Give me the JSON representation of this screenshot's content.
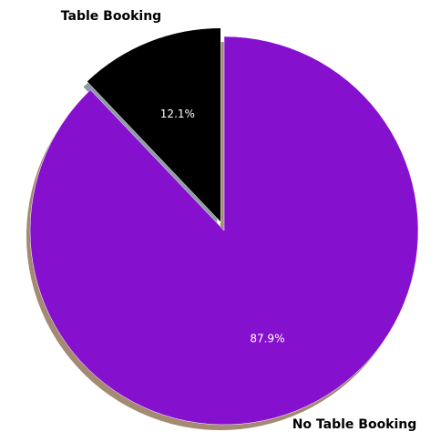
{
  "chart_data": {
    "type": "pie",
    "categories": [
      "Table Booking",
      "No Table Booking"
    ],
    "values": [
      12.1,
      87.9
    ],
    "value_labels": [
      "12.1%",
      "87.9%"
    ],
    "colors": [
      "#000000",
      "#8510CD"
    ],
    "exploded": [
      true,
      false
    ],
    "shadow": true,
    "start_angle": "12 o'clock, clockwise for No Table Booking",
    "legend": "none"
  }
}
